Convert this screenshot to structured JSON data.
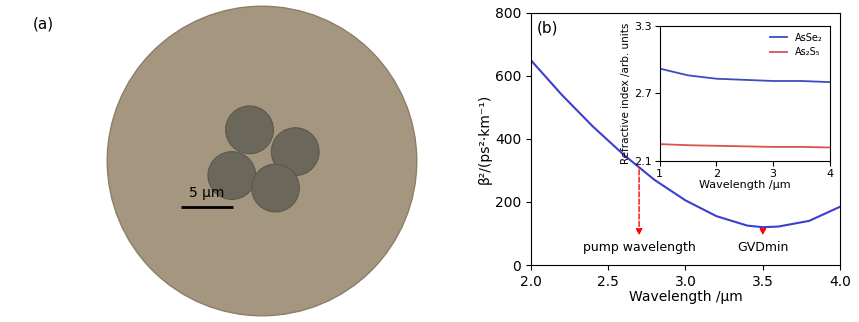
{
  "panel_a": {
    "label": "(a)",
    "scale_bar": {
      "label": "5 μm",
      "length": 5
    }
  },
  "chart_data": [
    {
      "type": "line",
      "title": "(b)",
      "x": [
        2.0,
        2.2,
        2.4,
        2.6,
        2.8,
        3.0,
        3.2,
        3.4,
        3.5,
        3.6,
        3.8,
        4.0
      ],
      "values": [
        650,
        540,
        440,
        350,
        270,
        205,
        155,
        125,
        120,
        122,
        140,
        185
      ],
      "color": "#3a3fd0",
      "xlabel": "Wavelength /μm",
      "ylabel": "β²/(ps²·km⁻¹)",
      "xlim": [
        2.0,
        4.0
      ],
      "xticks": [
        2.0,
        2.5,
        3.0,
        3.5,
        4.0
      ],
      "ylim": [
        0,
        800
      ],
      "yticks": [
        0,
        200,
        400,
        600,
        800
      ],
      "annotations": [
        {
          "text": "pump wavelength",
          "x": 2.7
        },
        {
          "text": "GVDmin",
          "x": 3.5
        }
      ]
    },
    {
      "type": "line",
      "x": [
        1,
        1.5,
        2,
        2.5,
        3,
        3.5,
        4
      ],
      "series": [
        {
          "name": "AsSe₂",
          "color": "#3b4cc0",
          "values": [
            2.92,
            2.86,
            2.83,
            2.82,
            2.81,
            2.81,
            2.8
          ]
        },
        {
          "name": "As₂S₅",
          "color": "#d9534f",
          "values": [
            2.25,
            2.24,
            2.235,
            2.23,
            2.225,
            2.225,
            2.22
          ]
        }
      ],
      "xlabel": "Wavelength /μm",
      "ylabel": "Refractive index /arb. units",
      "xlim": [
        1,
        4
      ],
      "xticks": [
        1,
        2,
        3,
        4
      ],
      "ylim": [
        2.1,
        3.3
      ],
      "yticks": [
        2.1,
        2.7,
        3.3
      ],
      "legend": "upper right"
    }
  ]
}
